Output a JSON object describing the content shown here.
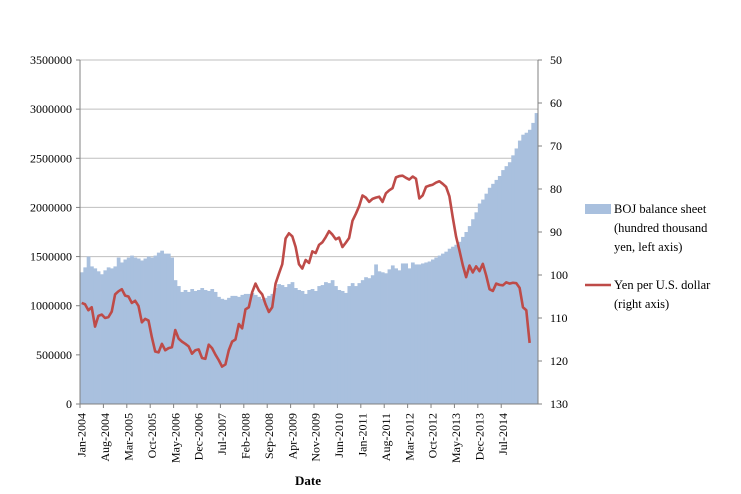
{
  "chart_data": {
    "type": "bar+line",
    "xlabel": "Date",
    "grid": true,
    "legend_position": "right",
    "left_axis": {
      "ylim": [
        0,
        3500000
      ],
      "ticks": [
        "0",
        "500000",
        "1000000",
        "1500000",
        "2000000",
        "2500000",
        "3000000",
        "3500000"
      ]
    },
    "right_axis": {
      "ylim": [
        130,
        50
      ],
      "inverted": true,
      "ticks": [
        "50",
        "60",
        "70",
        "80",
        "90",
        "100",
        "110",
        "120",
        "130"
      ]
    },
    "x_tick_labels": [
      "Jan-2004",
      "Aug-2004",
      "Mar-2005",
      "Oct-2005",
      "May-2006",
      "Dec-2006",
      "Jul-2007",
      "Feb-2008",
      "Sep-2008",
      "Apr-2009",
      "Nov-2009",
      "Jun-2010",
      "Jan-2011",
      "Aug-2011",
      "Mar-2012",
      "Oct-2012",
      "May-2013",
      "Dec-2013",
      "Jul-2014"
    ],
    "months_start": "Jan-2004",
    "series": [
      {
        "name": "BOJ balance sheet (hundred thousand yen, left axis)",
        "axis": "left",
        "kind": "bar",
        "color": "#a9c0de",
        "values": [
          1340000,
          1390000,
          1500000,
          1400000,
          1380000,
          1350000,
          1320000,
          1360000,
          1390000,
          1380000,
          1400000,
          1490000,
          1440000,
          1470000,
          1490000,
          1510000,
          1490000,
          1480000,
          1460000,
          1480000,
          1500000,
          1490000,
          1510000,
          1540000,
          1560000,
          1530000,
          1530000,
          1490000,
          1260000,
          1200000,
          1140000,
          1160000,
          1140000,
          1170000,
          1150000,
          1160000,
          1180000,
          1160000,
          1150000,
          1170000,
          1140000,
          1090000,
          1070000,
          1060000,
          1080000,
          1100000,
          1100000,
          1090000,
          1110000,
          1120000,
          1120000,
          1130000,
          1110000,
          1090000,
          1070000,
          1080000,
          1100000,
          1120000,
          1180000,
          1220000,
          1210000,
          1190000,
          1220000,
          1240000,
          1180000,
          1160000,
          1150000,
          1120000,
          1160000,
          1170000,
          1150000,
          1200000,
          1210000,
          1240000,
          1230000,
          1260000,
          1200000,
          1160000,
          1150000,
          1130000,
          1200000,
          1230000,
          1200000,
          1230000,
          1260000,
          1290000,
          1280000,
          1310000,
          1420000,
          1350000,
          1340000,
          1330000,
          1370000,
          1410000,
          1380000,
          1360000,
          1430000,
          1430000,
          1380000,
          1440000,
          1420000,
          1420000,
          1430000,
          1440000,
          1450000,
          1470000,
          1490000,
          1510000,
          1530000,
          1550000,
          1580000,
          1600000,
          1620000,
          1650000,
          1700000,
          1750000,
          1810000,
          1880000,
          1950000,
          2040000,
          2080000,
          2140000,
          2200000,
          2240000,
          2280000,
          2320000,
          2380000,
          2420000,
          2460000,
          2530000,
          2600000,
          2680000,
          2740000,
          2760000,
          2790000,
          2860000,
          2960000
        ]
      },
      {
        "name": "Yen per U.S. dollar (right axis)",
        "axis": "right",
        "kind": "line",
        "color": "#be4b48",
        "values": [
          106.5,
          106.8,
          108.2,
          107.5,
          112.0,
          109.5,
          109.2,
          110.0,
          109.8,
          108.5,
          104.5,
          103.8,
          103.3,
          104.8,
          105.0,
          106.5,
          106.0,
          107.2,
          111.0,
          110.2,
          110.6,
          114.5,
          117.8,
          118.0,
          116.0,
          117.5,
          117.0,
          116.8,
          112.8,
          114.8,
          115.5,
          116.0,
          116.6,
          118.3,
          117.5,
          117.3,
          119.3,
          119.5,
          116.2,
          117.0,
          118.5,
          119.8,
          121.3,
          120.8,
          117.5,
          115.5,
          115.0,
          111.4,
          112.4,
          108.0,
          107.5,
          104.0,
          102.0,
          103.6,
          104.5,
          106.8,
          108.6,
          107.5,
          102.0,
          99.7,
          97.5,
          91.5,
          90.3,
          91.0,
          93.5,
          97.5,
          98.5,
          96.5,
          97.2,
          94.5,
          94.9,
          93.0,
          92.4,
          91.2,
          89.8,
          90.6,
          91.7,
          91.3,
          93.5,
          92.5,
          91.4,
          87.4,
          85.8,
          84.0,
          81.5,
          82.0,
          83.0,
          82.3,
          82.0,
          81.8,
          83.0,
          81.0,
          80.3,
          79.8,
          77.3,
          77.0,
          76.9,
          77.4,
          77.8,
          77.1,
          77.6,
          82.2,
          81.5,
          79.5,
          79.2,
          79.0,
          78.5,
          78.2,
          78.8,
          79.5,
          81.7,
          86.6,
          91.1,
          94.3,
          97.7,
          100.5,
          97.8,
          99.4,
          98.0,
          99.1,
          97.4,
          100.1,
          103.3,
          103.7,
          102.0,
          102.3,
          102.4,
          101.7,
          102.0,
          101.8,
          101.9,
          103.0,
          107.5,
          108.2,
          115.8
        ]
      }
    ]
  },
  "legend": {
    "balance_label_lines": [
      "BOJ balance sheet",
      "(hundred thousand",
      "yen, left axis)"
    ],
    "yen_label_lines": [
      "Yen per U.S. dollar",
      "(right axis)"
    ]
  },
  "colors": {
    "bars": "#a9c0de",
    "line": "#be4b48",
    "grid": "#bfbfbf",
    "axis": "#808080"
  }
}
